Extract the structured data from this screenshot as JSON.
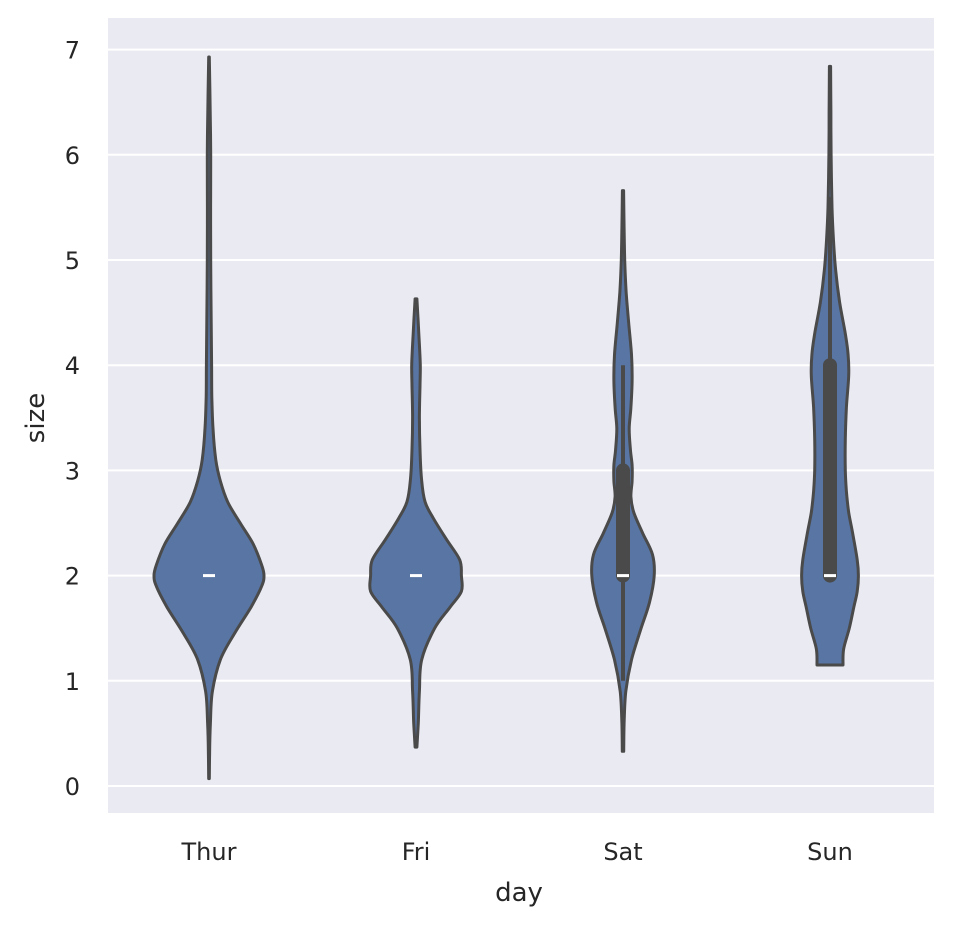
{
  "chart_data": {
    "type": "violin",
    "title": "",
    "xlabel": "day",
    "ylabel": "size",
    "categories": [
      "Thur",
      "Fri",
      "Sat",
      "Sun"
    ],
    "ylim": [
      -0.25,
      7.28
    ],
    "yticks": [
      0,
      1,
      2,
      3,
      4,
      5,
      6,
      7
    ],
    "grid": true,
    "legend": "none",
    "colors": {
      "background": "#eaeaf2",
      "grid": "#ffffff",
      "violin_fill": "#5875a4",
      "violin_edge": "#4a4a4a",
      "box": "#4a4a4a",
      "median": "#ffffff"
    },
    "violins": [
      {
        "category": "Thur",
        "range": [
          0.07,
          6.93
        ],
        "density": [
          [
            0.07,
            0.006
          ],
          [
            0.3,
            0.01
          ],
          [
            0.6,
            0.025
          ],
          [
            0.9,
            0.06
          ],
          [
            1.2,
            0.2
          ],
          [
            1.45,
            0.45
          ],
          [
            1.7,
            0.74
          ],
          [
            1.9,
            0.93
          ],
          [
            2.0,
            0.97
          ],
          [
            2.1,
            0.93
          ],
          [
            2.3,
            0.78
          ],
          [
            2.5,
            0.55
          ],
          [
            2.7,
            0.33
          ],
          [
            2.9,
            0.2
          ],
          [
            3.1,
            0.12
          ],
          [
            3.4,
            0.07
          ],
          [
            3.7,
            0.05
          ],
          [
            4.0,
            0.045
          ],
          [
            4.4,
            0.038
          ],
          [
            5.0,
            0.03
          ],
          [
            5.5,
            0.028
          ],
          [
            6.0,
            0.03
          ],
          [
            6.4,
            0.022
          ],
          [
            6.93,
            0.006
          ]
        ],
        "box": {
          "q1": 2,
          "median": 2,
          "q3": 2,
          "whisker_low": 2,
          "whisker_high": 2
        }
      },
      {
        "category": "Fri",
        "range": [
          0.37,
          4.63
        ],
        "density": [
          [
            0.37,
            0.015
          ],
          [
            0.6,
            0.04
          ],
          [
            0.9,
            0.06
          ],
          [
            1.2,
            0.1
          ],
          [
            1.5,
            0.33
          ],
          [
            1.7,
            0.6
          ],
          [
            1.85,
            0.8
          ],
          [
            2.0,
            0.8
          ],
          [
            2.15,
            0.77
          ],
          [
            2.35,
            0.53
          ],
          [
            2.55,
            0.3
          ],
          [
            2.7,
            0.16
          ],
          [
            2.9,
            0.1
          ],
          [
            3.2,
            0.07
          ],
          [
            3.5,
            0.06
          ],
          [
            3.8,
            0.07
          ],
          [
            4.0,
            0.075
          ],
          [
            4.3,
            0.05
          ],
          [
            4.63,
            0.015
          ]
        ],
        "box": {
          "q1": 2,
          "median": 2,
          "q3": 2,
          "whisker_low": 2,
          "whisker_high": 2
        }
      },
      {
        "category": "Sat",
        "range": [
          0.33,
          5.66
        ],
        "density": [
          [
            0.33,
            0.012
          ],
          [
            0.6,
            0.02
          ],
          [
            0.9,
            0.05
          ],
          [
            1.2,
            0.15
          ],
          [
            1.5,
            0.32
          ],
          [
            1.75,
            0.47
          ],
          [
            2.0,
            0.55
          ],
          [
            2.2,
            0.52
          ],
          [
            2.4,
            0.35
          ],
          [
            2.6,
            0.19
          ],
          [
            2.75,
            0.14
          ],
          [
            2.9,
            0.16
          ],
          [
            3.05,
            0.16
          ],
          [
            3.2,
            0.13
          ],
          [
            3.4,
            0.11
          ],
          [
            3.6,
            0.14
          ],
          [
            3.85,
            0.16
          ],
          [
            4.1,
            0.15
          ],
          [
            4.4,
            0.1
          ],
          [
            4.7,
            0.055
          ],
          [
            5.0,
            0.03
          ],
          [
            5.3,
            0.02
          ],
          [
            5.66,
            0.01
          ]
        ],
        "box": {
          "q1": 2,
          "median": 2,
          "q3": 3,
          "whisker_low": 1,
          "whisker_high": 4
        }
      },
      {
        "category": "Sun",
        "range": [
          1.15,
          6.84
        ],
        "density": [
          [
            1.15,
            0.23
          ],
          [
            1.3,
            0.24
          ],
          [
            1.5,
            0.34
          ],
          [
            1.7,
            0.42
          ],
          [
            1.85,
            0.48
          ],
          [
            2.0,
            0.5
          ],
          [
            2.15,
            0.48
          ],
          [
            2.4,
            0.4
          ],
          [
            2.6,
            0.33
          ],
          [
            2.8,
            0.29
          ],
          [
            3.0,
            0.27
          ],
          [
            3.3,
            0.27
          ],
          [
            3.6,
            0.29
          ],
          [
            3.9,
            0.33
          ],
          [
            4.1,
            0.32
          ],
          [
            4.3,
            0.27
          ],
          [
            4.6,
            0.17
          ],
          [
            4.9,
            0.1
          ],
          [
            5.2,
            0.06
          ],
          [
            5.5,
            0.035
          ],
          [
            6.0,
            0.02
          ],
          [
            6.4,
            0.015
          ],
          [
            6.84,
            0.01
          ]
        ],
        "box": {
          "q1": 2,
          "median": 2,
          "q3": 4,
          "whisker_low": 2,
          "whisker_high": 5.6
        }
      }
    ]
  }
}
